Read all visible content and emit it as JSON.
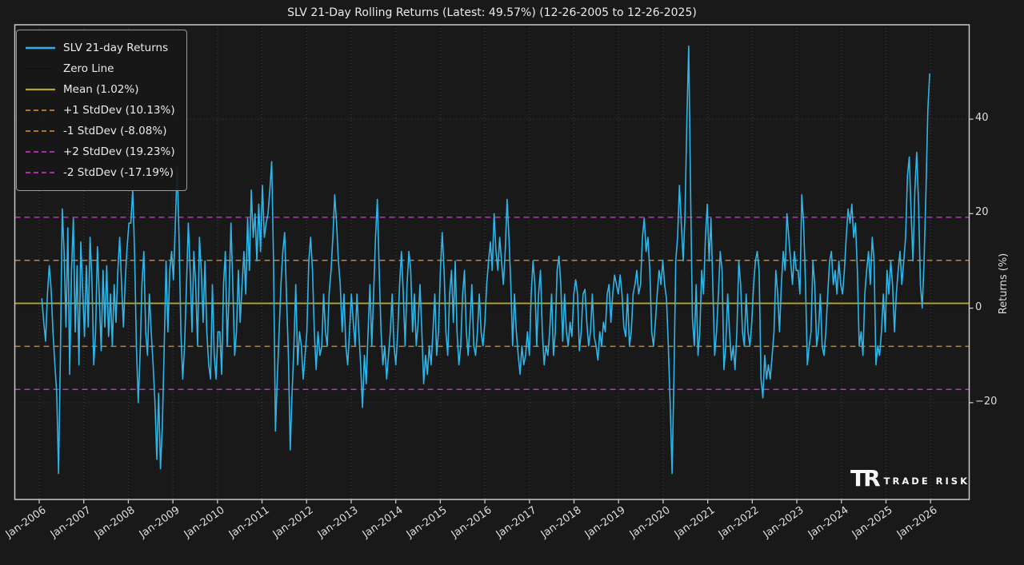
{
  "title": "SLV 21-Day Rolling Returns (Latest: 49.57%) (12-26-2005 to 12-26-2025)",
  "legend": [
    {
      "label": "SLV 21-day Returns",
      "color": "#2db5ea",
      "dash": "",
      "width": 2.4
    },
    {
      "label": "Zero Line",
      "color": "#10131c",
      "dash": "",
      "width": 2.0
    },
    {
      "label": "Mean (1.02%)",
      "color": "#b7a42c",
      "dash": "",
      "width": 2.2
    },
    {
      "label": "+1 StdDev (10.13%)",
      "color": "#c8812a",
      "dash": "6 4",
      "width": 1.8
    },
    {
      "label": "-1 StdDev (-8.08%)",
      "color": "#c8812a",
      "dash": "6 4",
      "width": 1.8
    },
    {
      "label": "+2 StdDev (19.23%)",
      "color": "#c02fc0",
      "dash": "6 4",
      "width": 1.8
    },
    {
      "label": "-2 StdDev (-17.19%)",
      "color": "#c02fc0",
      "dash": "6 4",
      "width": 1.8
    }
  ],
  "axes": {
    "y_label": "Returns (%)",
    "y_ticks": [
      {
        "value": -20,
        "label": "−20"
      },
      {
        "value": 0,
        "label": "0"
      },
      {
        "value": 20,
        "label": "20"
      },
      {
        "value": 40,
        "label": "40"
      }
    ],
    "x_ticks": [
      {
        "year": 2006,
        "label": "Jan-2006"
      },
      {
        "year": 2007,
        "label": "Jan-2007"
      },
      {
        "year": 2008,
        "label": "Jan-2008"
      },
      {
        "year": 2009,
        "label": "Jan-2009"
      },
      {
        "year": 2010,
        "label": "Jan-2010"
      },
      {
        "year": 2011,
        "label": "Jan-2011"
      },
      {
        "year": 2012,
        "label": "Jan-2012"
      },
      {
        "year": 2013,
        "label": "Jan-2013"
      },
      {
        "year": 2014,
        "label": "Jan-2014"
      },
      {
        "year": 2015,
        "label": "Jan-2015"
      },
      {
        "year": 2016,
        "label": "Jan-2016"
      },
      {
        "year": 2017,
        "label": "Jan-2017"
      },
      {
        "year": 2018,
        "label": "Jan-2018"
      },
      {
        "year": 2019,
        "label": "Jan-2019"
      },
      {
        "year": 2020,
        "label": "Jan-2020"
      },
      {
        "year": 2021,
        "label": "Jan-2021"
      },
      {
        "year": 2022,
        "label": "Jan-2022"
      },
      {
        "year": 2023,
        "label": "Jan-2023"
      },
      {
        "year": 2024,
        "label": "Jan-2024"
      },
      {
        "year": 2025,
        "label": "Jan-2025"
      },
      {
        "year": 2026,
        "label": "Jan-2026"
      }
    ],
    "grid_color": "#3f3f3f",
    "zero_gridline_color": "#97a097",
    "spine_color": "#c9c9c9"
  },
  "logo": {
    "mark": "TR",
    "text": "TRADE RISK"
  },
  "chart_data": {
    "type": "line",
    "title": "SLV 21-Day Rolling Returns (Latest: 49.57%) (12-26-2005 to 12-26-2025)",
    "xlabel": "",
    "ylabel": "Returns (%)",
    "date_range": {
      "start": "12-26-2005",
      "end": "12-26-2025"
    },
    "latest_value_pct": 49.57,
    "mean_pct": 1.02,
    "stdev_plus1_pct": 10.13,
    "stdev_minus1_pct": -8.08,
    "stdev_plus2_pct": 19.23,
    "stdev_minus2_pct": -17.19,
    "ylim": [
      -40.5,
      60
    ],
    "x_start_year_decimal": 2006.06,
    "x_end_year_decimal": 2025.98,
    "resolution": "semi-monthly estimate, 24 points per year",
    "series": [
      {
        "name": "SLV 21-day Returns",
        "color": "#2db5ea",
        "values": [
          2,
          -3,
          -7,
          3,
          9,
          4,
          -5,
          -12,
          -18,
          -35,
          -10,
          21,
          12,
          -4,
          17,
          -14,
          8,
          19,
          -5,
          9,
          -12,
          14,
          4,
          -6,
          9,
          -4,
          15,
          6,
          -12,
          -5,
          13,
          2,
          -9,
          8,
          -4,
          9,
          -6,
          3,
          -8,
          5,
          -3,
          8,
          15,
          5,
          -4,
          6,
          13,
          18,
          18,
          25,
          12,
          -8,
          -20,
          -10,
          5,
          12,
          -5,
          -10,
          3,
          -5,
          -12,
          -20,
          -32,
          -18,
          -34,
          -25,
          -8,
          10,
          -5,
          8,
          12,
          6,
          18,
          30,
          15,
          -5,
          -15,
          -8,
          5,
          18,
          8,
          -5,
          12,
          5,
          -8,
          15,
          8,
          -3,
          10,
          -5,
          -12,
          -15,
          5,
          -10,
          -15,
          -5,
          -5,
          -14,
          5,
          12,
          -8,
          3,
          18,
          5,
          -10,
          -5,
          8,
          -3,
          5,
          12,
          3,
          19,
          8,
          25,
          15,
          20,
          10,
          22,
          12,
          26,
          15,
          18,
          20,
          25,
          31,
          10,
          -26,
          -15,
          -5,
          5,
          12,
          16,
          2,
          -10,
          -30,
          -18,
          -8,
          5,
          -12,
          -5,
          -8,
          -15,
          -10,
          -5,
          10,
          15,
          8,
          -5,
          -13,
          -5,
          -10,
          -8,
          3,
          -5,
          -8,
          3,
          8,
          15,
          24,
          18,
          10,
          5,
          -5,
          3,
          -8,
          -12,
          -5,
          3,
          -3,
          -8,
          3,
          -5,
          -12,
          -21,
          -10,
          -16,
          -5,
          5,
          -8,
          3,
          15,
          23,
          8,
          -5,
          -12,
          -8,
          -15,
          -10,
          -5,
          3,
          -8,
          -12,
          -5,
          5,
          12,
          3,
          -8,
          5,
          12,
          8,
          -5,
          3,
          -8,
          -3,
          5,
          -5,
          -16,
          -10,
          -14,
          -8,
          -12,
          -5,
          3,
          -10,
          -5,
          8,
          16,
          8,
          -5,
          -10,
          3,
          8,
          -3,
          10,
          -5,
          -12,
          -8,
          3,
          8,
          -5,
          -10,
          -3,
          5,
          -8,
          -10,
          -5,
          3,
          -5,
          -8,
          -3,
          5,
          10,
          14,
          8,
          20,
          12,
          8,
          15,
          10,
          5,
          12,
          23,
          15,
          5,
          -8,
          3,
          -5,
          -10,
          -14,
          -8,
          -12,
          -10,
          -5,
          -10,
          3,
          10,
          5,
          -8,
          3,
          8,
          -5,
          -12,
          -8,
          -10,
          -5,
          3,
          -10,
          -5,
          8,
          11,
          5,
          -7,
          3,
          -5,
          -8,
          -3,
          -6,
          3,
          6,
          3,
          -9,
          -5,
          3,
          4,
          -3,
          -8,
          -5,
          3,
          -6,
          -8,
          -11,
          -5,
          -8,
          -3,
          -5,
          3,
          5,
          -3,
          3,
          7,
          5,
          3,
          7,
          3,
          -4,
          -6,
          3,
          -8,
          -5,
          3,
          5,
          8,
          3,
          5,
          15,
          19,
          12,
          15,
          8,
          -5,
          -8,
          -3,
          3,
          8,
          5,
          10,
          5,
          2,
          -8,
          -20,
          -35,
          -15,
          10,
          15,
          26,
          18,
          10,
          20,
          40,
          55.5,
          25,
          -2,
          -8,
          5,
          -10,
          -5,
          8,
          3,
          15,
          22,
          10,
          19,
          5,
          -10,
          -5,
          3,
          12,
          8,
          -13,
          -8,
          3,
          -5,
          -11,
          -8,
          -13,
          -5,
          10,
          5,
          -5,
          -8,
          3,
          -5,
          -8,
          -3,
          5,
          10,
          12,
          8,
          -15,
          -19,
          -10,
          -15,
          -12,
          -15,
          -10,
          -5,
          8,
          3,
          -5,
          5,
          12,
          8,
          20,
          15,
          10,
          5,
          12,
          8,
          8,
          3,
          24,
          18,
          5,
          -12,
          -8,
          -5,
          10,
          5,
          -8,
          -5,
          3,
          -8,
          -10,
          -5,
          3,
          10,
          12,
          5,
          8,
          3,
          10,
          5,
          3,
          8,
          15,
          21,
          18,
          22,
          15,
          18,
          8,
          -8,
          -5,
          -10,
          3,
          8,
          12,
          5,
          15,
          10,
          -12,
          -8,
          -10,
          -5,
          3,
          -5,
          8,
          3,
          10,
          5,
          -5,
          3,
          8,
          12,
          5,
          10,
          15,
          28,
          32,
          20,
          10,
          25,
          33,
          22,
          5,
          0,
          10,
          25,
          42,
          49.57
        ]
      }
    ],
    "reference_lines": [
      {
        "name": "Zero Line",
        "value": 0,
        "color": "#10131c",
        "style": "solid",
        "width": 1.2
      },
      {
        "name": "Mean",
        "value": 1.02,
        "color": "#b7a42c",
        "style": "solid",
        "width": 1.8
      },
      {
        "name": "+1 StdDev",
        "value": 10.13,
        "color": "#c8812a",
        "style": "dashed",
        "width": 1.5
      },
      {
        "name": "-1 StdDev",
        "value": -8.08,
        "color": "#c8812a",
        "style": "dashed",
        "width": 1.5
      },
      {
        "name": "+2 StdDev",
        "value": 19.23,
        "color": "#c02fc0",
        "style": "dashed",
        "width": 1.5
      },
      {
        "name": "-2 StdDev",
        "value": -17.19,
        "color": "#c02fc0",
        "style": "dashed",
        "width": 1.5
      }
    ],
    "legend_position": "upper left",
    "grid": true
  }
}
